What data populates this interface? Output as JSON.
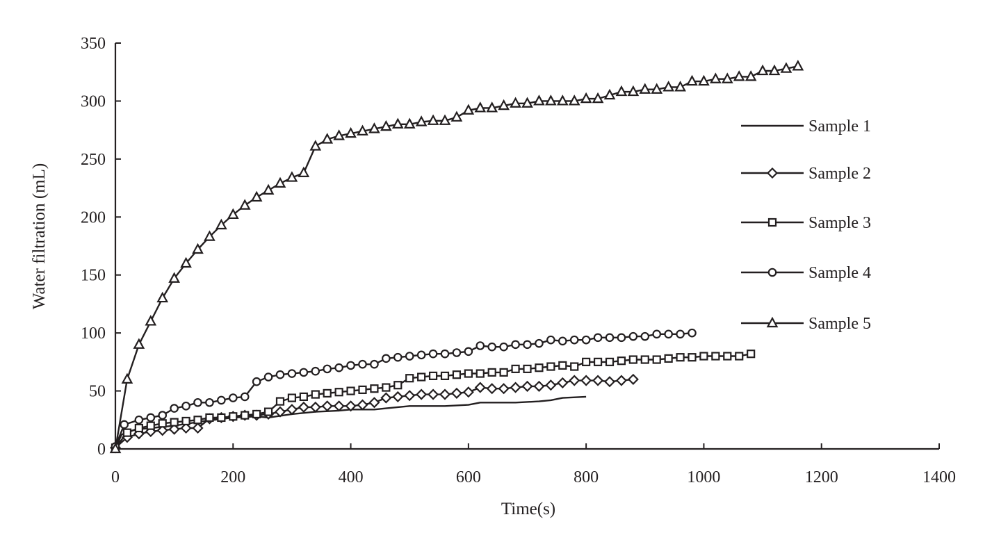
{
  "chart_data": {
    "type": "line",
    "title": "",
    "xlabel": "Time(s)",
    "ylabel": "Water filtration (mL)",
    "xlim": [
      0,
      1400
    ],
    "ylim": [
      0,
      350
    ],
    "xticks": [
      0,
      200,
      400,
      600,
      800,
      1000,
      1200,
      1400
    ],
    "yticks": [
      0,
      50,
      100,
      150,
      200,
      250,
      300,
      350
    ],
    "grid": false,
    "legend_position": "right",
    "line_color": "#231f20",
    "series": [
      {
        "name": "Sample 1",
        "marker": "none",
        "points": [
          [
            0,
            0
          ],
          [
            10,
            12
          ],
          [
            20,
            15
          ],
          [
            40,
            17
          ],
          [
            60,
            18
          ],
          [
            100,
            20
          ],
          [
            150,
            24
          ],
          [
            200,
            27
          ],
          [
            240,
            28
          ],
          [
            260,
            27
          ],
          [
            300,
            30
          ],
          [
            340,
            32
          ],
          [
            380,
            33
          ],
          [
            400,
            34
          ],
          [
            440,
            34
          ],
          [
            460,
            35
          ],
          [
            500,
            37
          ],
          [
            560,
            37
          ],
          [
            600,
            38
          ],
          [
            620,
            40
          ],
          [
            680,
            40
          ],
          [
            720,
            41
          ],
          [
            740,
            42
          ],
          [
            760,
            44
          ],
          [
            800,
            45
          ]
        ]
      },
      {
        "name": "Sample 2",
        "marker": "diamond",
        "points": [
          [
            0,
            1
          ],
          [
            20,
            10
          ],
          [
            40,
            13
          ],
          [
            60,
            15
          ],
          [
            80,
            16
          ],
          [
            100,
            17
          ],
          [
            120,
            18
          ],
          [
            140,
            18
          ],
          [
            160,
            26
          ],
          [
            180,
            27
          ],
          [
            200,
            28
          ],
          [
            220,
            29
          ],
          [
            240,
            29
          ],
          [
            260,
            30
          ],
          [
            280,
            32
          ],
          [
            300,
            34
          ],
          [
            320,
            36
          ],
          [
            340,
            36
          ],
          [
            360,
            37
          ],
          [
            380,
            37
          ],
          [
            400,
            37
          ],
          [
            420,
            38
          ],
          [
            440,
            40
          ],
          [
            460,
            44
          ],
          [
            480,
            45
          ],
          [
            500,
            46
          ],
          [
            520,
            47
          ],
          [
            540,
            47
          ],
          [
            560,
            47
          ],
          [
            580,
            48
          ],
          [
            600,
            49
          ],
          [
            620,
            53
          ],
          [
            640,
            52
          ],
          [
            660,
            52
          ],
          [
            680,
            53
          ],
          [
            700,
            54
          ],
          [
            720,
            54
          ],
          [
            740,
            55
          ],
          [
            760,
            57
          ],
          [
            780,
            59
          ],
          [
            800,
            59
          ],
          [
            820,
            59
          ],
          [
            840,
            58
          ],
          [
            860,
            59
          ],
          [
            880,
            60
          ]
        ]
      },
      {
        "name": "Sample 3",
        "marker": "square",
        "points": [
          [
            0,
            1
          ],
          [
            20,
            14
          ],
          [
            40,
            18
          ],
          [
            60,
            20
          ],
          [
            80,
            22
          ],
          [
            100,
            23
          ],
          [
            120,
            24
          ],
          [
            140,
            25
          ],
          [
            160,
            27
          ],
          [
            180,
            27
          ],
          [
            200,
            28
          ],
          [
            220,
            29
          ],
          [
            240,
            30
          ],
          [
            260,
            32
          ],
          [
            280,
            41
          ],
          [
            300,
            44
          ],
          [
            320,
            45
          ],
          [
            340,
            47
          ],
          [
            360,
            48
          ],
          [
            380,
            49
          ],
          [
            400,
            50
          ],
          [
            420,
            51
          ],
          [
            440,
            52
          ],
          [
            460,
            53
          ],
          [
            480,
            55
          ],
          [
            500,
            61
          ],
          [
            520,
            62
          ],
          [
            540,
            63
          ],
          [
            560,
            63
          ],
          [
            580,
            64
          ],
          [
            600,
            65
          ],
          [
            620,
            65
          ],
          [
            640,
            66
          ],
          [
            660,
            66
          ],
          [
            680,
            69
          ],
          [
            700,
            69
          ],
          [
            720,
            70
          ],
          [
            740,
            71
          ],
          [
            760,
            72
          ],
          [
            780,
            71
          ],
          [
            800,
            75
          ],
          [
            820,
            75
          ],
          [
            840,
            75
          ],
          [
            860,
            76
          ],
          [
            880,
            77
          ],
          [
            900,
            77
          ],
          [
            920,
            77
          ],
          [
            940,
            78
          ],
          [
            960,
            79
          ],
          [
            980,
            79
          ],
          [
            1000,
            80
          ],
          [
            1020,
            80
          ],
          [
            1040,
            80
          ],
          [
            1060,
            80
          ],
          [
            1080,
            82
          ]
        ]
      },
      {
        "name": "Sample 4",
        "marker": "circle",
        "points": [
          [
            0,
            2
          ],
          [
            15,
            21
          ],
          [
            40,
            25
          ],
          [
            60,
            27
          ],
          [
            80,
            29
          ],
          [
            100,
            35
          ],
          [
            120,
            37
          ],
          [
            140,
            40
          ],
          [
            160,
            40
          ],
          [
            180,
            42
          ],
          [
            200,
            44
          ],
          [
            220,
            45
          ],
          [
            240,
            58
          ],
          [
            260,
            62
          ],
          [
            280,
            64
          ],
          [
            300,
            65
          ],
          [
            320,
            66
          ],
          [
            340,
            67
          ],
          [
            360,
            69
          ],
          [
            380,
            70
          ],
          [
            400,
            72
          ],
          [
            420,
            73
          ],
          [
            440,
            73
          ],
          [
            460,
            78
          ],
          [
            480,
            79
          ],
          [
            500,
            80
          ],
          [
            520,
            81
          ],
          [
            540,
            82
          ],
          [
            560,
            82
          ],
          [
            580,
            83
          ],
          [
            600,
            84
          ],
          [
            620,
            89
          ],
          [
            640,
            88
          ],
          [
            660,
            88
          ],
          [
            680,
            90
          ],
          [
            700,
            90
          ],
          [
            720,
            91
          ],
          [
            740,
            94
          ],
          [
            760,
            93
          ],
          [
            780,
            94
          ],
          [
            800,
            94
          ],
          [
            820,
            96
          ],
          [
            840,
            96
          ],
          [
            860,
            96
          ],
          [
            880,
            97
          ],
          [
            900,
            97
          ],
          [
            920,
            99
          ],
          [
            940,
            99
          ],
          [
            960,
            99
          ],
          [
            980,
            100
          ]
        ]
      },
      {
        "name": "Sample 5",
        "marker": "triangle",
        "points": [
          [
            0,
            0
          ],
          [
            20,
            60
          ],
          [
            40,
            90
          ],
          [
            60,
            110
          ],
          [
            80,
            130
          ],
          [
            100,
            147
          ],
          [
            120,
            160
          ],
          [
            140,
            172
          ],
          [
            160,
            183
          ],
          [
            180,
            193
          ],
          [
            200,
            202
          ],
          [
            220,
            210
          ],
          [
            240,
            217
          ],
          [
            260,
            223
          ],
          [
            280,
            229
          ],
          [
            300,
            234
          ],
          [
            320,
            238
          ],
          [
            340,
            261
          ],
          [
            360,
            267
          ],
          [
            380,
            270
          ],
          [
            400,
            272
          ],
          [
            420,
            274
          ],
          [
            440,
            276
          ],
          [
            460,
            278
          ],
          [
            480,
            280
          ],
          [
            500,
            280
          ],
          [
            520,
            282
          ],
          [
            540,
            283
          ],
          [
            560,
            283
          ],
          [
            580,
            286
          ],
          [
            600,
            292
          ],
          [
            620,
            294
          ],
          [
            640,
            294
          ],
          [
            660,
            296
          ],
          [
            680,
            298
          ],
          [
            700,
            298
          ],
          [
            720,
            300
          ],
          [
            740,
            300
          ],
          [
            760,
            300
          ],
          [
            780,
            300
          ],
          [
            800,
            302
          ],
          [
            820,
            302
          ],
          [
            840,
            305
          ],
          [
            860,
            308
          ],
          [
            880,
            308
          ],
          [
            900,
            310
          ],
          [
            920,
            310
          ],
          [
            940,
            312
          ],
          [
            960,
            312
          ],
          [
            980,
            317
          ],
          [
            1000,
            317
          ],
          [
            1020,
            319
          ],
          [
            1040,
            319
          ],
          [
            1060,
            321
          ],
          [
            1080,
            321
          ],
          [
            1100,
            326
          ],
          [
            1120,
            326
          ],
          [
            1140,
            328
          ],
          [
            1160,
            330
          ]
        ]
      }
    ]
  }
}
